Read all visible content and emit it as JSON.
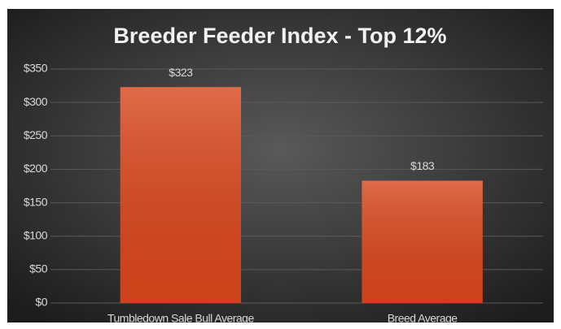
{
  "chart_data": {
    "type": "bar",
    "title": "Breeder Feeder Index - Top 12%",
    "categories": [
      "Tumbledown Sale Bull Average",
      "Breed Average"
    ],
    "values": [
      323,
      183
    ],
    "value_labels": [
      "$323",
      "$183"
    ],
    "color": "#d8461c",
    "ylim": [
      0,
      350
    ],
    "yticks": [
      {
        "value": 0,
        "label": "$0"
      },
      {
        "value": 50,
        "label": "$50"
      },
      {
        "value": 100,
        "label": "$100"
      },
      {
        "value": 150,
        "label": "$150"
      },
      {
        "value": 200,
        "label": "$200"
      },
      {
        "value": 250,
        "label": "$250"
      },
      {
        "value": 300,
        "label": "$300"
      },
      {
        "value": 350,
        "label": "$350"
      }
    ],
    "grid": true
  }
}
